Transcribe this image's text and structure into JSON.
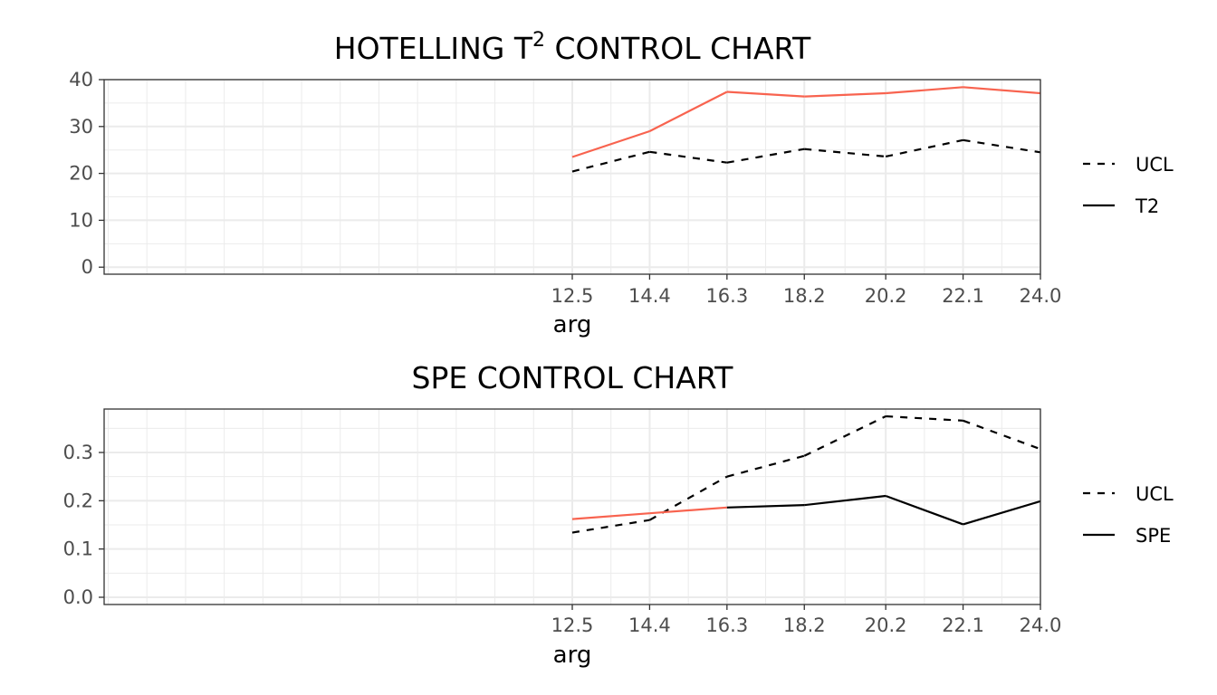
{
  "chart_data": [
    {
      "type": "line",
      "title_main": "HOTELLING T",
      "title_sup": "2",
      "title_rest": " CONTROL CHART",
      "xlabel": "arg",
      "x": [
        12.5,
        14.4,
        16.3,
        18.2,
        20.2,
        22.1,
        24.0
      ],
      "x_tick_labels": [
        "12.5",
        "14.4",
        "16.3",
        "18.2",
        "20.2",
        "22.1",
        "24.0"
      ],
      "xlim": [
        1.0,
        24.0
      ],
      "ylim": [
        -1.5,
        40.0
      ],
      "y_ticks": [
        0,
        10,
        20,
        30,
        40
      ],
      "y_tick_labels": [
        "0",
        "10",
        "20",
        "30",
        "40"
      ],
      "grid": true,
      "legend_position": "right",
      "series": [
        {
          "name": "UCL",
          "linetype": "dashed",
          "values": [
            20.4,
            24.6,
            22.3,
            25.2,
            23.6,
            27.1,
            24.5
          ],
          "colors": [
            "#000000"
          ]
        },
        {
          "name": "T2",
          "linetype": "solid",
          "values": [
            23.5,
            29.0,
            37.4,
            36.4,
            37.1,
            38.4,
            37.1
          ],
          "colors": [
            "#f8634f"
          ]
        }
      ]
    },
    {
      "type": "line",
      "title_main": "SPE CONTROL CHART",
      "title_sup": "",
      "title_rest": "",
      "xlabel": "arg",
      "x": [
        12.5,
        14.4,
        16.3,
        18.2,
        20.2,
        22.1,
        24.0
      ],
      "x_tick_labels": [
        "12.5",
        "14.4",
        "16.3",
        "18.2",
        "20.2",
        "22.1",
        "24.0"
      ],
      "xlim": [
        1.0,
        24.0
      ],
      "ylim": [
        -0.015,
        0.39
      ],
      "y_ticks": [
        0.0,
        0.1,
        0.2,
        0.3
      ],
      "y_tick_labels": [
        "0.0",
        "0.1",
        "0.2",
        "0.3"
      ],
      "grid": true,
      "legend_position": "right",
      "series": [
        {
          "name": "UCL",
          "linetype": "dashed",
          "values": [
            0.134,
            0.16,
            0.25,
            0.293,
            0.375,
            0.366,
            0.307
          ],
          "colors": [
            "#000000"
          ]
        },
        {
          "name": "SPE",
          "linetype": "solid",
          "values": [
            0.162,
            0.174,
            0.186,
            0.191,
            0.21,
            0.151,
            0.199
          ],
          "colors": [
            "#f8634f",
            "#f8634f",
            "#000000",
            "#000000",
            "#000000",
            "#000000",
            "#000000"
          ]
        }
      ]
    }
  ]
}
